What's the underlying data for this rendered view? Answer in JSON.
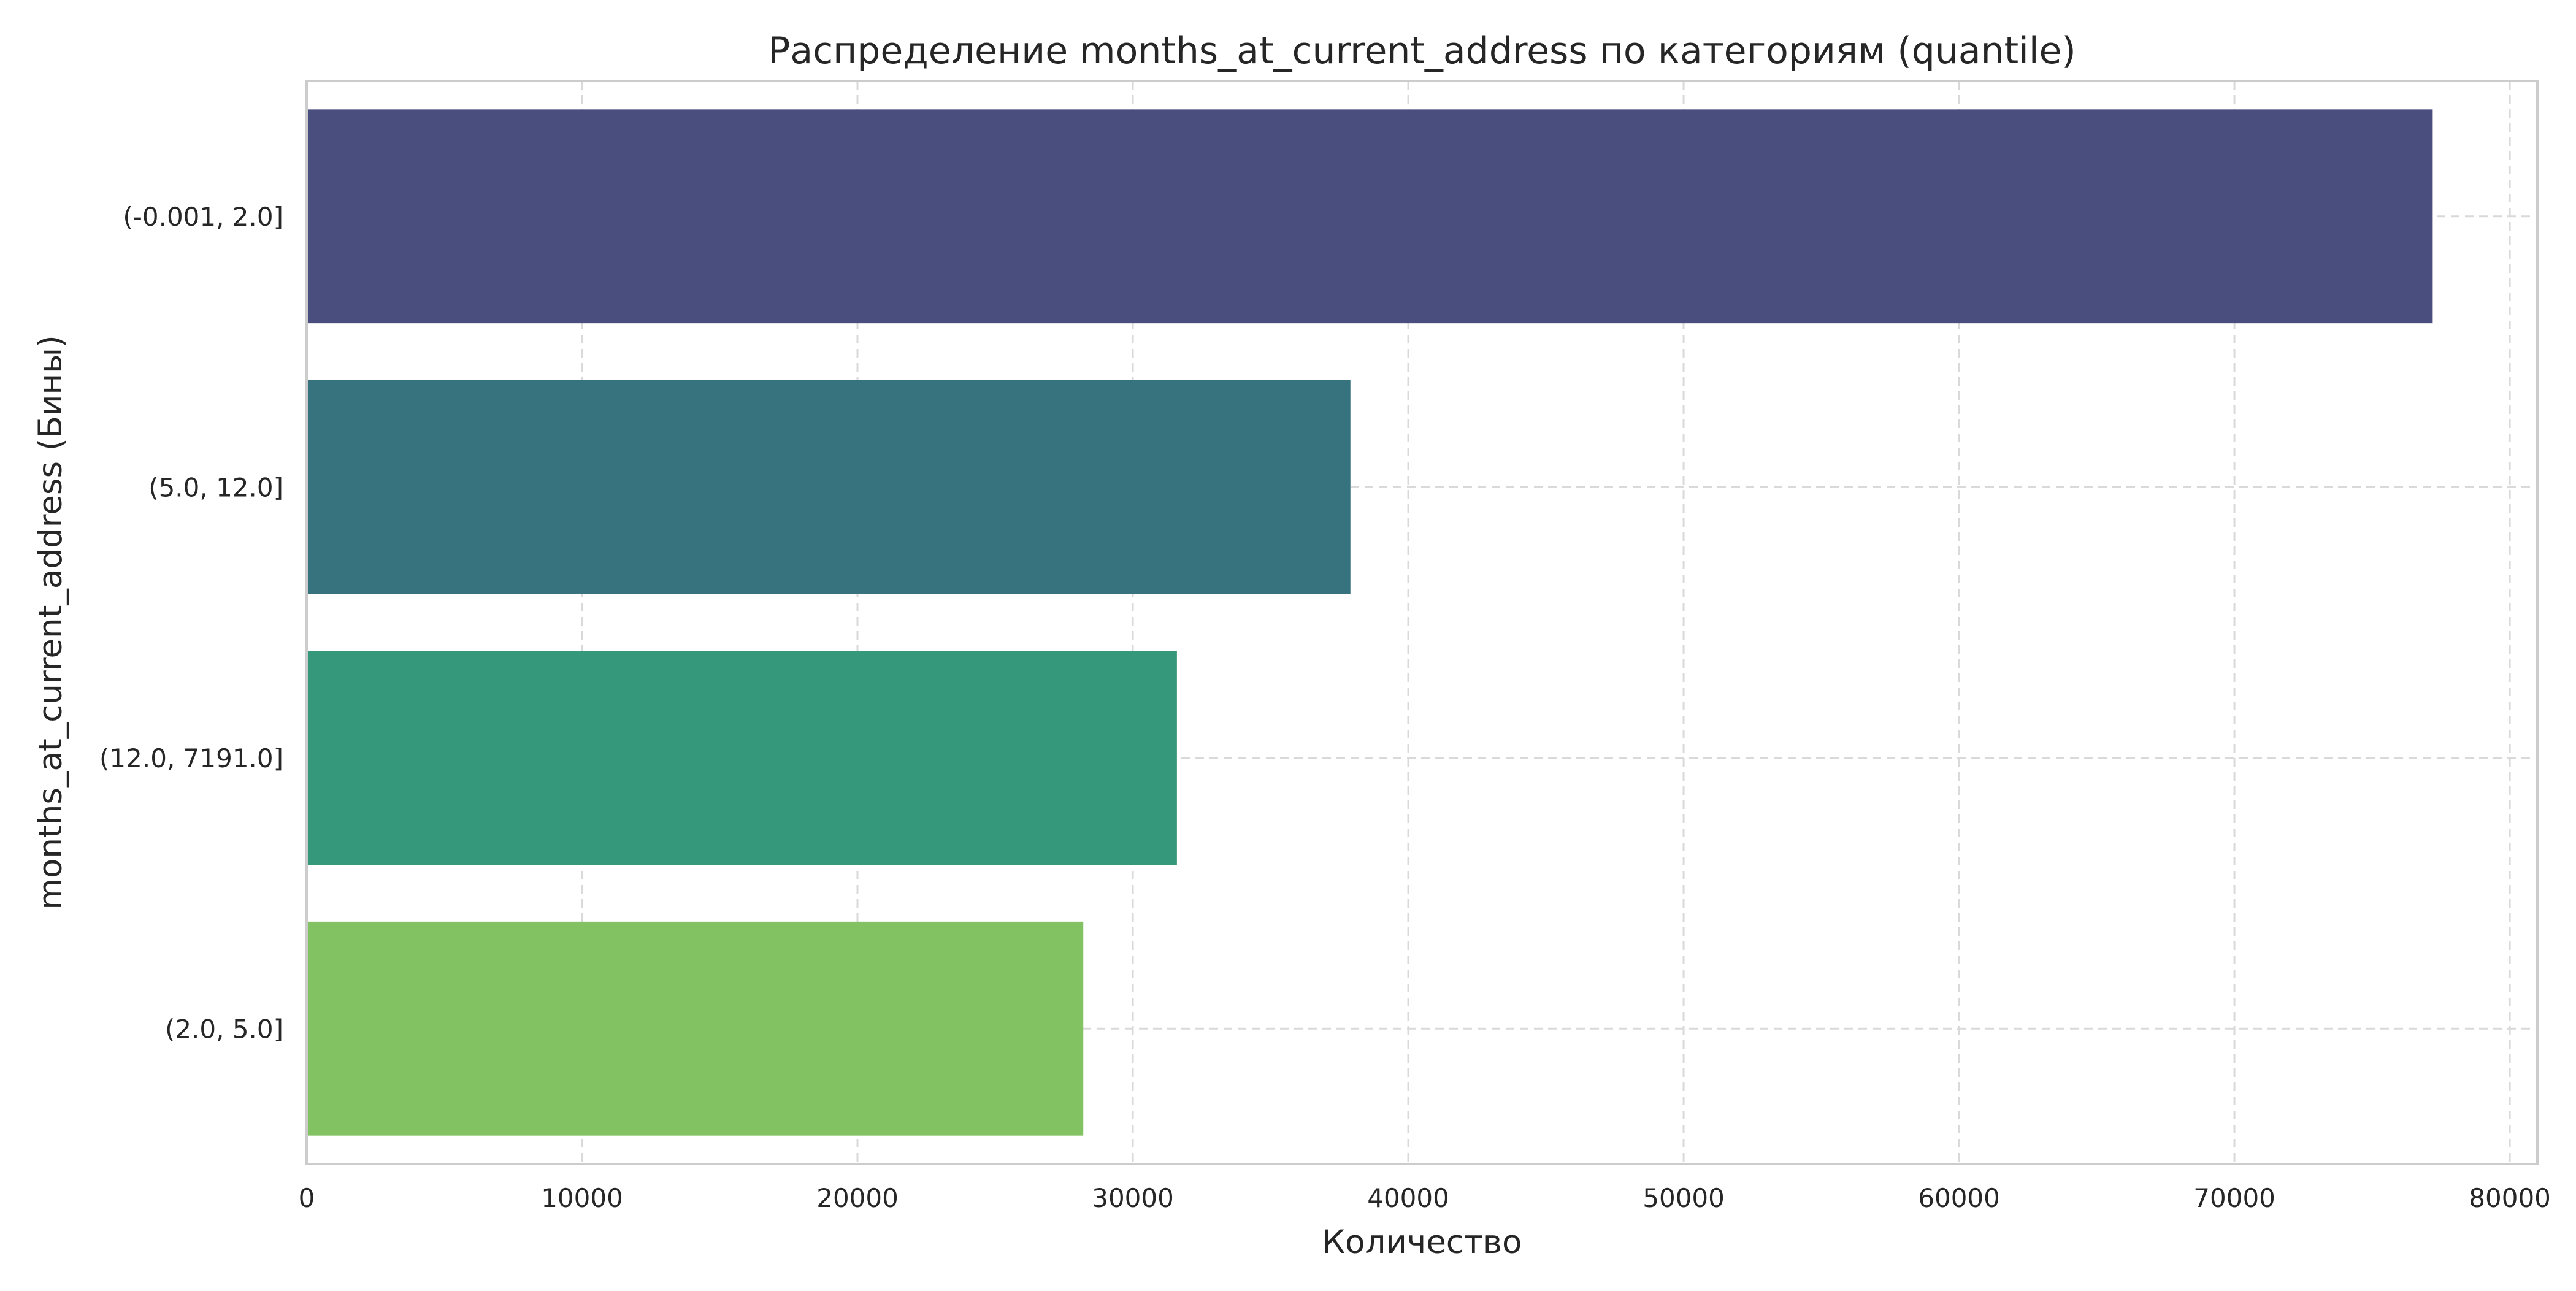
{
  "chart_data": {
    "type": "bar",
    "orientation": "horizontal",
    "title": "Распределение months_at_current_address по категориям (quantile)",
    "xlabel": "Количество",
    "ylabel": "months_at_current_address (Бины)",
    "categories": [
      "(-0.001, 2.0]",
      "(5.0, 12.0]",
      "(12.0, 7191.0]",
      "(2.0, 5.0]"
    ],
    "values": [
      77200,
      37900,
      31600,
      28200
    ],
    "colors": [
      "#4a4e7e",
      "#37727f",
      "#35987b",
      "#82c262"
    ],
    "xlim": [
      0,
      81000
    ],
    "xticks": [
      0,
      10000,
      20000,
      30000,
      40000,
      50000,
      60000,
      70000,
      80000
    ],
    "xtick_labels": [
      "0",
      "10000",
      "20000",
      "30000",
      "40000",
      "50000",
      "60000",
      "70000",
      "80000"
    ],
    "grid": true,
    "legend": "none"
  }
}
